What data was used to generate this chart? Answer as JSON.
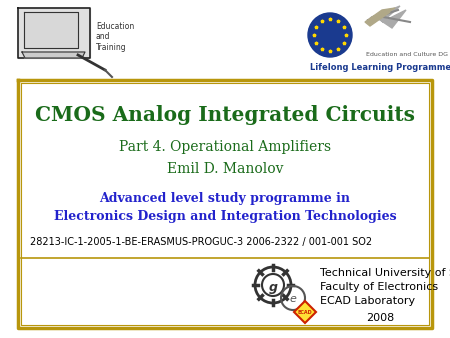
{
  "title": "CMOS Analog Integrated Circuits",
  "subtitle": "Part 4. Operational Amplifiers",
  "author": "Emil D. Manolov",
  "program_line1": "Advanced level study programme in",
  "program_line2": "Electronics Design and Integration Technologies",
  "grant": "28213-IC-1-2005-1-BE-ERASMUS-PROGUC-3 2006-2322 / 001-001 SO2",
  "uni_line1": "Technical University of Sofia",
  "uni_line2": "Faculty of Electronics",
  "uni_line3": "ECAD Laboratory",
  "uni_year": "2008",
  "title_color": "#1a6b1a",
  "subtitle_color": "#1a6b1a",
  "author_color": "#1a6b1a",
  "program_color": "#2222cc",
  "grant_color": "#000000",
  "uni_color": "#000000",
  "border_color": "#b8960c",
  "bg_color": "#ffffff"
}
